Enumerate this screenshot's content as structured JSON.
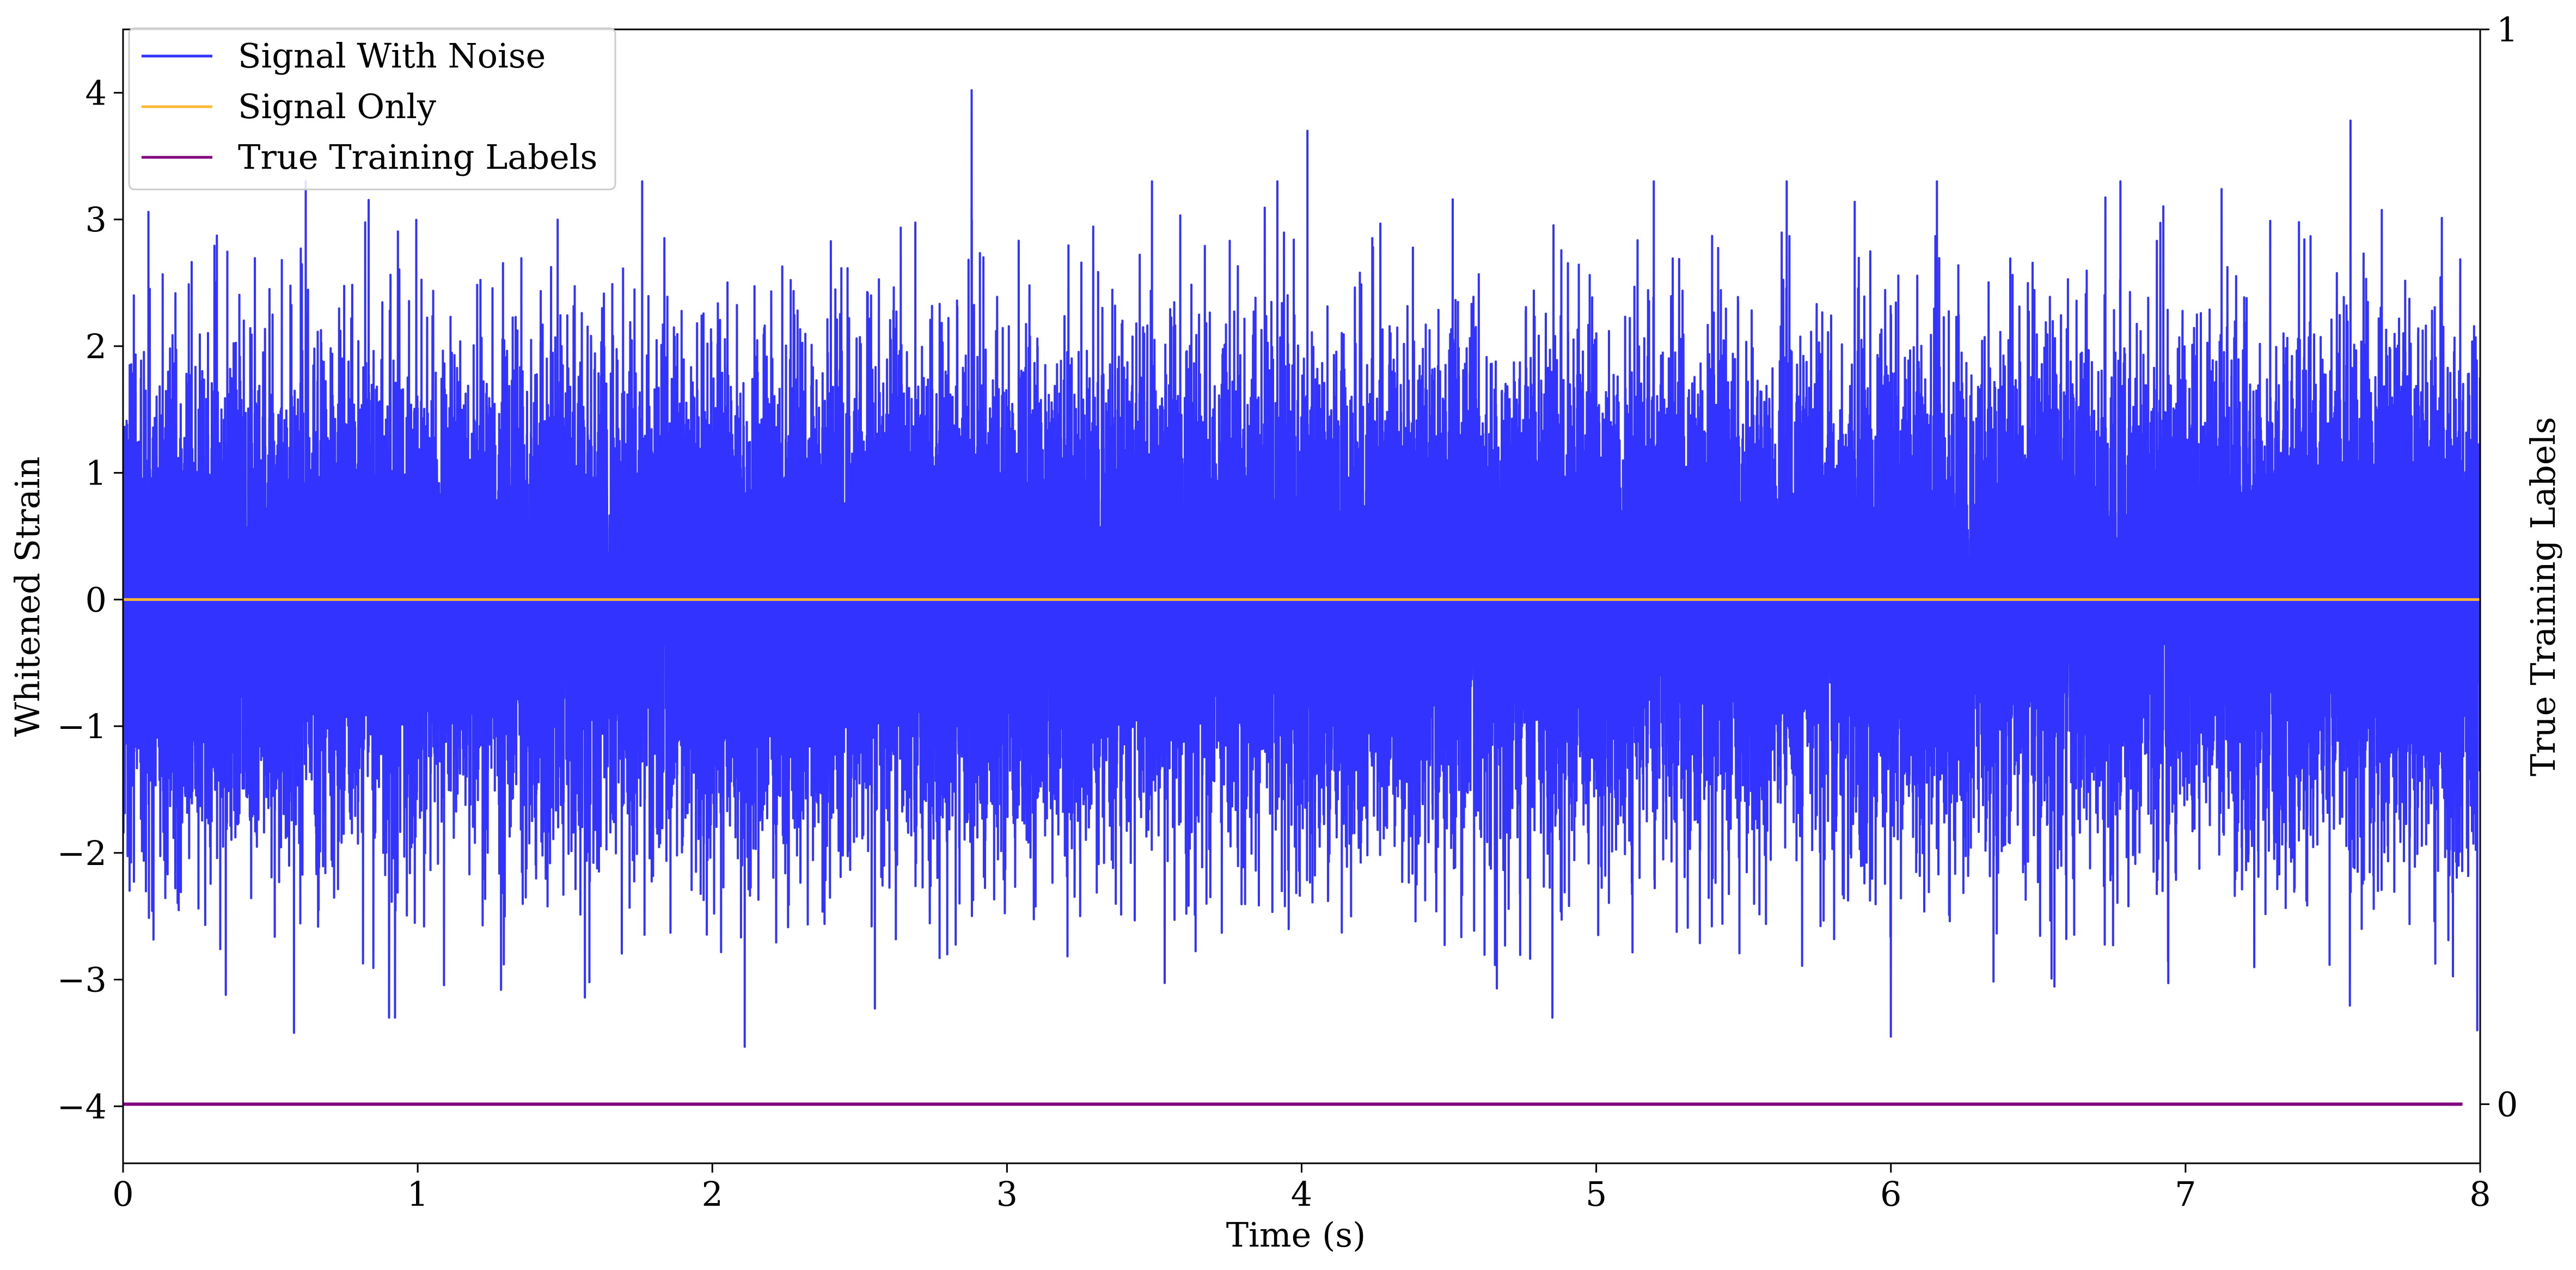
{
  "chart_data": {
    "type": "line",
    "title": "",
    "xlabel": "Time (s)",
    "ylabel": "Whitened Strain",
    "ylabel_right": "True Training Labels",
    "xlim": [
      0,
      8
    ],
    "ylim": [
      -4.45,
      4.5
    ],
    "ylim_right": [
      -0.055,
      1
    ],
    "x_ticks": [
      0,
      1,
      2,
      3,
      4,
      5,
      6,
      7,
      8
    ],
    "x_tick_labels": [
      "0",
      "1",
      "2",
      "3",
      "4",
      "5",
      "6",
      "7",
      "8"
    ],
    "y_ticks": [
      -4,
      -3,
      -2,
      -1,
      0,
      1,
      2,
      3,
      4
    ],
    "y_tick_labels": [
      "−4",
      "−3",
      "−2",
      "−1",
      "0",
      "1",
      "2",
      "3",
      "4"
    ],
    "y_right_ticks": [
      0,
      1
    ],
    "y_right_tick_labels": [
      "0",
      "1"
    ],
    "grid": false,
    "legend_position": "top-left",
    "series": [
      {
        "name": "Signal With Noise",
        "color": "#3333ff",
        "axis": "left",
        "kind": "gaussian-noise",
        "sample_rate_hz": 4096,
        "std": 0.95,
        "notable_peaks": [
          {
            "x": 2.88,
            "y": 4.02
          },
          {
            "x": 7.56,
            "y": 3.78
          },
          {
            "x": 4.02,
            "y": 3.7
          },
          {
            "x": 0.62,
            "y": 3.3
          },
          {
            "x": 2.11,
            "y": -3.53
          },
          {
            "x": 0.58,
            "y": -3.42
          },
          {
            "x": 6.0,
            "y": -3.45
          },
          {
            "x": 7.99,
            "y": -3.4
          }
        ]
      },
      {
        "name": "Signal Only",
        "color": "#ffb833",
        "axis": "left",
        "x": [
          0,
          8
        ],
        "y": [
          0,
          0
        ]
      },
      {
        "name": "True Training Labels",
        "color": "#800080",
        "axis": "right",
        "x": [
          0,
          7.94
        ],
        "y": [
          0,
          0
        ]
      }
    ]
  }
}
